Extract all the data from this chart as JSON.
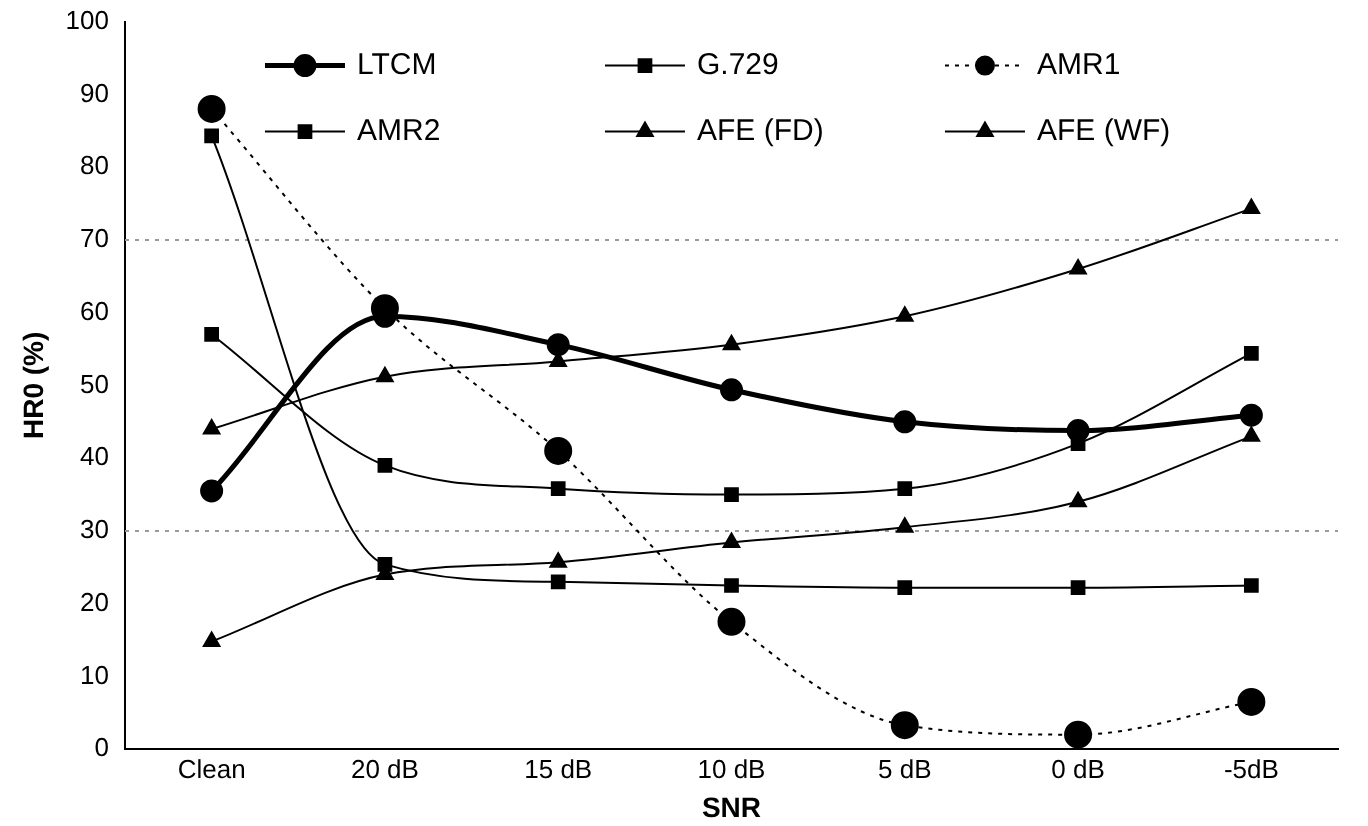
{
  "chart_data": {
    "type": "line",
    "xlabel": "SNR",
    "ylabel": "HR0 (%)",
    "categories": [
      "Clean",
      "20 dB",
      "15 dB",
      "10 dB",
      "5 dB",
      "0 dB",
      "-5dB"
    ],
    "series": [
      {
        "name": "LTCM",
        "color": "#000000",
        "marker": "circle",
        "line_style": "solid",
        "values": [
          35.5,
          59.5,
          55.6,
          49.4,
          45,
          43.8,
          45.9
        ]
      },
      {
        "name": "G.729",
        "color": "#000000",
        "marker": "square",
        "line_style": "solid",
        "values": [
          84.3,
          25.4,
          23,
          22.5,
          22.2,
          22.2,
          22.5
        ]
      },
      {
        "name": "AMR1",
        "color": "#000000",
        "marker": "circle",
        "line_style": "dotted",
        "values": [
          88,
          60.6,
          41,
          17.5,
          3.3,
          2,
          6.5
        ]
      },
      {
        "name": "AMR2",
        "color": "#000000",
        "marker": "square",
        "line_style": "solid",
        "values": [
          57,
          39,
          35.8,
          35,
          35.8,
          42,
          54.4
        ]
      },
      {
        "name": "AFE (FD)",
        "color": "#000000",
        "marker": "triangle",
        "line_style": "solid",
        "values": [
          14.8,
          24,
          25.7,
          28.4,
          30.5,
          34,
          43
        ]
      },
      {
        "name": "AFE (WF)",
        "color": "#000000",
        "marker": "triangle",
        "line_style": "solid",
        "values": [
          44,
          51.2,
          53.3,
          55.6,
          59.5,
          66,
          74.3
        ]
      }
    ],
    "ylim": [
      0,
      100
    ],
    "yticks": [
      0,
      10,
      20,
      30,
      40,
      50,
      60,
      70,
      80,
      90,
      100
    ],
    "ref_lines": [
      {
        "axis": "y",
        "value": 30,
        "color": "#999999",
        "line_style": "dotted"
      },
      {
        "axis": "y",
        "value": 70,
        "color": "#999999",
        "line_style": "dotted"
      }
    ],
    "legend": "top",
    "grid": false
  }
}
